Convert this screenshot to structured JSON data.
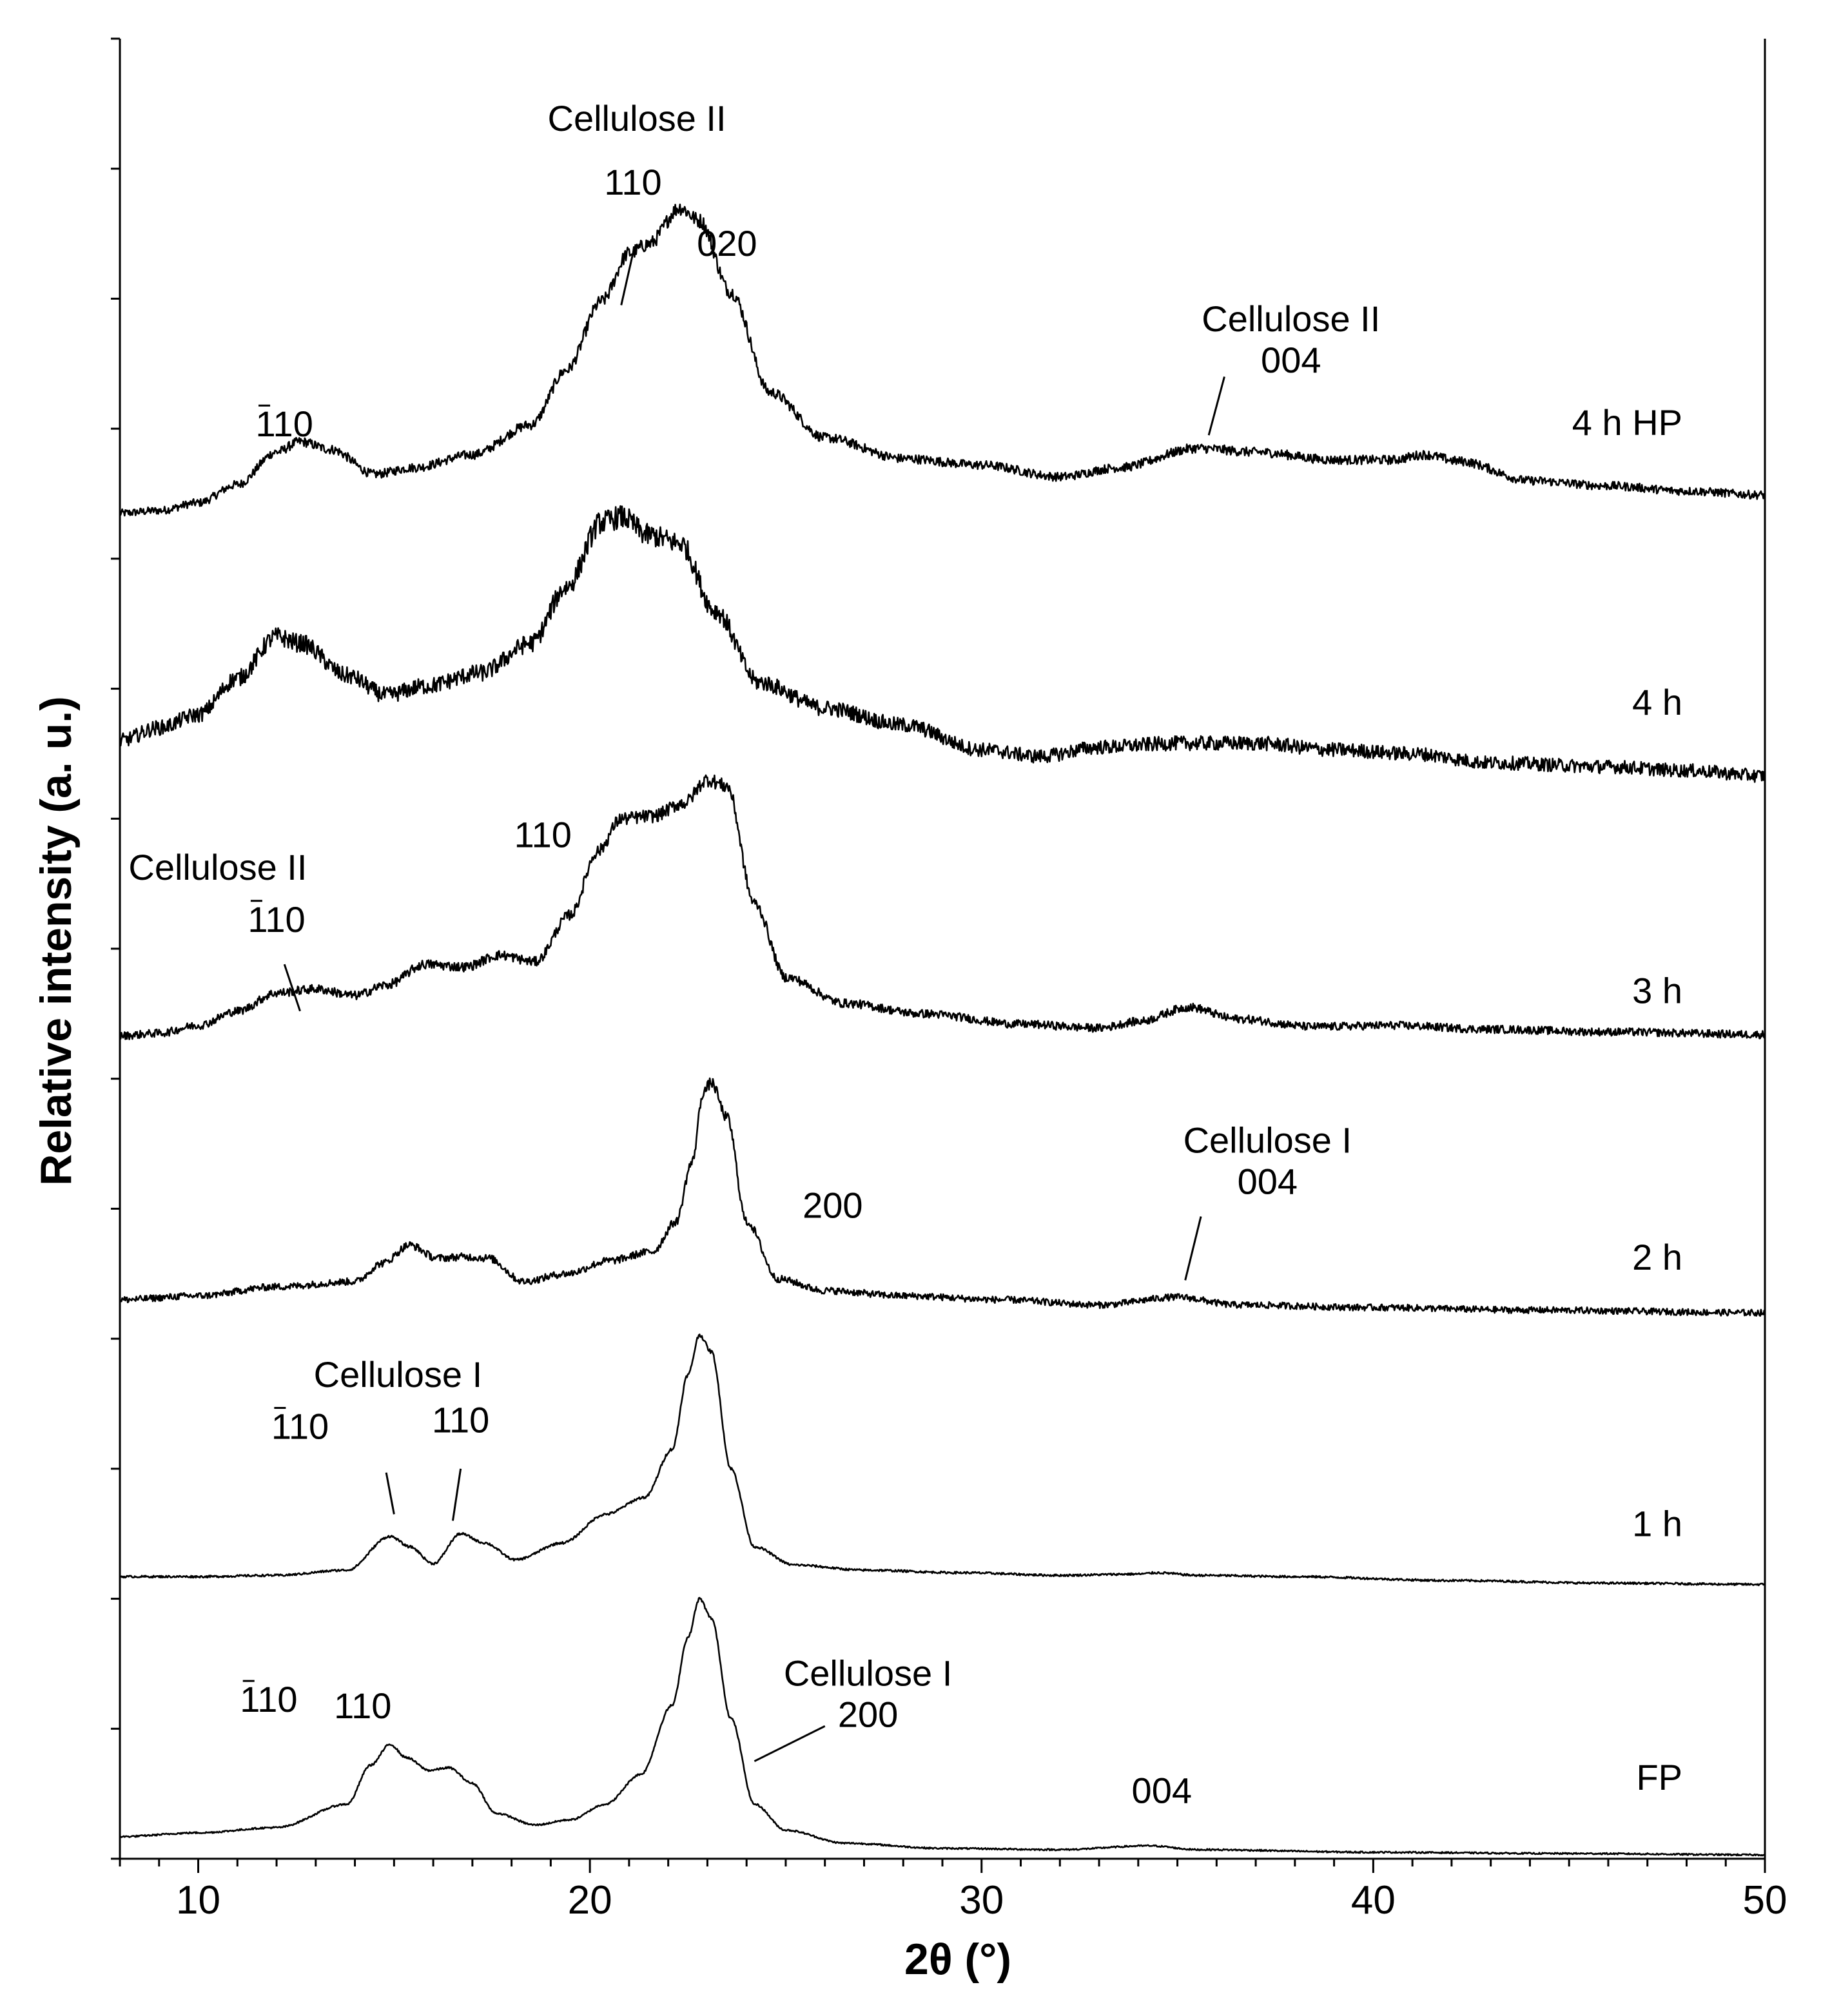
{
  "chart_data": {
    "type": "line",
    "title": "",
    "xlabel": "2θ (°)",
    "ylabel": "Relative intensity (a. u.)",
    "xlim": [
      8,
      50
    ],
    "ylim": [
      0,
      14
    ],
    "xticks": [
      10,
      20,
      30,
      40,
      50
    ],
    "y_tick_count": 14,
    "grid": false,
    "series": [
      {
        "name": "4 h HP",
        "offset": 10.3,
        "noise": 0.03,
        "points": [
          [
            8,
            0.05
          ],
          [
            9,
            0.07
          ],
          [
            10,
            0.13
          ],
          [
            11,
            0.27
          ],
          [
            12,
            0.52
          ],
          [
            12.6,
            0.6
          ],
          [
            13.4,
            0.54
          ],
          [
            14.5,
            0.35
          ],
          [
            15.5,
            0.4
          ],
          [
            17,
            0.5
          ],
          [
            18.5,
            0.73
          ],
          [
            19.4,
            1.15
          ],
          [
            20.3,
            1.68
          ],
          [
            21,
            2.05
          ],
          [
            21.5,
            2.12
          ],
          [
            22.3,
            2.4
          ],
          [
            22.8,
            2.3
          ],
          [
            23.6,
            1.75
          ],
          [
            24.6,
            0.98
          ],
          [
            26,
            0.63
          ],
          [
            28,
            0.47
          ],
          [
            30,
            0.42
          ],
          [
            32,
            0.33
          ],
          [
            33.5,
            0.4
          ],
          [
            35.5,
            0.55
          ],
          [
            37,
            0.52
          ],
          [
            39,
            0.46
          ],
          [
            40.5,
            0.46
          ],
          [
            41.3,
            0.5
          ],
          [
            42.2,
            0.45
          ],
          [
            44,
            0.3
          ],
          [
            46,
            0.26
          ],
          [
            48,
            0.22
          ],
          [
            50,
            0.19
          ]
        ]
      },
      {
        "name": "4 h",
        "offset": 8.3,
        "noise": 0.05,
        "points": [
          [
            8,
            0.3
          ],
          [
            9,
            0.4
          ],
          [
            10,
            0.5
          ],
          [
            11,
            0.78
          ],
          [
            12,
            1.1
          ],
          [
            12.6,
            1.05
          ],
          [
            13.8,
            0.8
          ],
          [
            14.8,
            0.65
          ],
          [
            15.8,
            0.72
          ],
          [
            17.2,
            0.82
          ],
          [
            18.5,
            1.05
          ],
          [
            19.4,
            1.48
          ],
          [
            20.3,
            1.98
          ],
          [
            20.8,
            2.02
          ],
          [
            21.5,
            1.88
          ],
          [
            22.3,
            1.82
          ],
          [
            23.2,
            1.3
          ],
          [
            24.3,
            0.75
          ],
          [
            26,
            0.55
          ],
          [
            28,
            0.42
          ],
          [
            30,
            0.23
          ],
          [
            31.5,
            0.18
          ],
          [
            33,
            0.25
          ],
          [
            35,
            0.28
          ],
          [
            37,
            0.28
          ],
          [
            39,
            0.23
          ],
          [
            41,
            0.2
          ],
          [
            43,
            0.13
          ],
          [
            46,
            0.1
          ],
          [
            48,
            0.07
          ],
          [
            50,
            0.03
          ]
        ]
      },
      {
        "name": "3 h",
        "offset": 6.3,
        "noise": 0.03,
        "points": [
          [
            8,
            0.03
          ],
          [
            9,
            0.05
          ],
          [
            10,
            0.11
          ],
          [
            11,
            0.22
          ],
          [
            12,
            0.36
          ],
          [
            13,
            0.39
          ],
          [
            14,
            0.34
          ],
          [
            14.8,
            0.42
          ],
          [
            15.8,
            0.58
          ],
          [
            16.8,
            0.56
          ],
          [
            17.7,
            0.65
          ],
          [
            18.6,
            0.6
          ],
          [
            19.5,
            0.96
          ],
          [
            20.2,
            1.45
          ],
          [
            20.8,
            1.7
          ],
          [
            21.6,
            1.72
          ],
          [
            22.4,
            1.82
          ],
          [
            23,
            2.0
          ],
          [
            23.5,
            1.95
          ],
          [
            24.2,
            1.05
          ],
          [
            25,
            0.48
          ],
          [
            26.5,
            0.28
          ],
          [
            28.5,
            0.2
          ],
          [
            31,
            0.12
          ],
          [
            33,
            0.09
          ],
          [
            34,
            0.14
          ],
          [
            35.3,
            0.25
          ],
          [
            36.5,
            0.16
          ],
          [
            38.5,
            0.1
          ],
          [
            40.5,
            0.11
          ],
          [
            43,
            0.08
          ],
          [
            46,
            0.06
          ],
          [
            50,
            0.04
          ]
        ]
      },
      {
        "name": "2 h",
        "offset": 4.2,
        "noise": 0.025,
        "points": [
          [
            8,
            0.1
          ],
          [
            10,
            0.13
          ],
          [
            12,
            0.2
          ],
          [
            14,
            0.24
          ],
          [
            14.7,
            0.38
          ],
          [
            15.4,
            0.52
          ],
          [
            16.1,
            0.42
          ],
          [
            16.8,
            0.43
          ],
          [
            17.4,
            0.42
          ],
          [
            18.3,
            0.24
          ],
          [
            19.4,
            0.3
          ],
          [
            20.5,
            0.4
          ],
          [
            21.6,
            0.47
          ],
          [
            22.2,
            0.7
          ],
          [
            22.6,
            1.15
          ],
          [
            22.9,
            1.7
          ],
          [
            23.1,
            1.77
          ],
          [
            23.5,
            1.5
          ],
          [
            24,
            0.7
          ],
          [
            24.8,
            0.26
          ],
          [
            26,
            0.17
          ],
          [
            28,
            0.13
          ],
          [
            30.5,
            0.1
          ],
          [
            33,
            0.06
          ],
          [
            35,
            0.12
          ],
          [
            36.5,
            0.06
          ],
          [
            40,
            0.04
          ],
          [
            44,
            0.02
          ],
          [
            50,
            0.0
          ]
        ]
      },
      {
        "name": "1 h",
        "offset": 2.1,
        "noise": 0.008,
        "points": [
          [
            8,
            0.07
          ],
          [
            10,
            0.07
          ],
          [
            12,
            0.08
          ],
          [
            13.8,
            0.12
          ],
          [
            14.9,
            0.38
          ],
          [
            15.4,
            0.3
          ],
          [
            16,
            0.17
          ],
          [
            16.7,
            0.4
          ],
          [
            17.3,
            0.33
          ],
          [
            18.1,
            0.2
          ],
          [
            19.3,
            0.33
          ],
          [
            20.4,
            0.55
          ],
          [
            21.4,
            0.68
          ],
          [
            22.1,
            1.05
          ],
          [
            22.5,
            1.62
          ],
          [
            22.8,
            1.93
          ],
          [
            23.1,
            1.8
          ],
          [
            23.6,
            0.9
          ],
          [
            24.2,
            0.3
          ],
          [
            25.2,
            0.16
          ],
          [
            27,
            0.12
          ],
          [
            29.5,
            0.1
          ],
          [
            32,
            0.08
          ],
          [
            34,
            0.09
          ],
          [
            34.5,
            0.1
          ],
          [
            35.5,
            0.08
          ],
          [
            38,
            0.07
          ],
          [
            42,
            0.04
          ],
          [
            46,
            0.02
          ],
          [
            50,
            0.01
          ]
        ]
      },
      {
        "name": "FP",
        "offset": 0.0,
        "noise": 0.006,
        "points": [
          [
            8,
            0.17
          ],
          [
            10,
            0.2
          ],
          [
            12,
            0.24
          ],
          [
            13.8,
            0.42
          ],
          [
            14.4,
            0.72
          ],
          [
            14.9,
            0.88
          ],
          [
            15.3,
            0.78
          ],
          [
            15.9,
            0.68
          ],
          [
            16.4,
            0.7
          ],
          [
            17,
            0.58
          ],
          [
            17.6,
            0.35
          ],
          [
            18.6,
            0.26
          ],
          [
            19.5,
            0.3
          ],
          [
            20.4,
            0.42
          ],
          [
            21.3,
            0.65
          ],
          [
            22.1,
            1.18
          ],
          [
            22.5,
            1.7
          ],
          [
            22.8,
            2.0
          ],
          [
            23.1,
            1.85
          ],
          [
            23.6,
            1.08
          ],
          [
            24.2,
            0.42
          ],
          [
            25,
            0.22
          ],
          [
            26.5,
            0.12
          ],
          [
            29,
            0.08
          ],
          [
            32,
            0.07
          ],
          [
            34.3,
            0.1
          ],
          [
            35.5,
            0.07
          ],
          [
            40,
            0.05
          ],
          [
            45,
            0.04
          ],
          [
            50,
            0.03
          ]
        ]
      }
    ],
    "annotations": [
      {
        "lines": [
          "Cellulose II"
        ],
        "x": 21.2,
        "y": 13.29
      },
      {
        "lines": [
          "110"
        ],
        "x": 21.1,
        "y": 12.8
      },
      {
        "lines": [
          "020"
        ],
        "x": 23.5,
        "y": 12.33
      },
      {
        "lines": [
          "110"
        ],
        "bar": "1",
        "x": 12.2,
        "y": 10.94
      },
      {
        "lines": [
          "Cellulose II",
          "004"
        ],
        "x": 37.9,
        "y": 11.75
      },
      {
        "lines": [
          "Cellulose II"
        ],
        "x": 10.5,
        "y": 7.53
      },
      {
        "lines": [
          "110"
        ],
        "bar": "1",
        "x": 12.0,
        "y": 7.13
      },
      {
        "lines": [
          "110"
        ],
        "x": 18.8,
        "y": 7.78
      },
      {
        "lines": [
          "Cellulose I",
          "004"
        ],
        "x": 37.3,
        "y": 5.43
      },
      {
        "lines": [
          "200"
        ],
        "x": 26.2,
        "y": 4.93
      },
      {
        "lines": [
          "Cellulose I"
        ],
        "x": 15.1,
        "y": 3.63
      },
      {
        "lines": [
          "110"
        ],
        "bar": "1",
        "x": 12.6,
        "y": 3.23
      },
      {
        "lines": [
          "110"
        ],
        "x": 16.7,
        "y": 3.28
      },
      {
        "lines": [
          "Cellulose I",
          "200"
        ],
        "x": 27.1,
        "y": 1.33
      },
      {
        "lines": [
          "110"
        ],
        "bar": "1",
        "x": 11.8,
        "y": 1.13
      },
      {
        "lines": [
          "110"
        ],
        "x": 14.2,
        "y": 1.08
      },
      {
        "lines": [
          "004"
        ],
        "x": 34.6,
        "y": 0.43
      }
    ],
    "leaders": [
      [
        [
          21.1,
          12.35
        ],
        [
          20.8,
          11.95
        ]
      ],
      [
        [
          36.2,
          11.4
        ],
        [
          35.8,
          10.95
        ]
      ],
      [
        [
          12.2,
          6.88
        ],
        [
          12.6,
          6.52
        ]
      ],
      [
        [
          35.6,
          4.94
        ],
        [
          35.2,
          4.45
        ]
      ],
      [
        [
          14.8,
          2.97
        ],
        [
          15.0,
          2.65
        ]
      ],
      [
        [
          16.7,
          3.0
        ],
        [
          16.5,
          2.6
        ]
      ],
      [
        [
          26.0,
          1.02
        ],
        [
          24.2,
          0.75
        ]
      ]
    ],
    "series_labels": [
      {
        "text": "4 h HP",
        "y": 10.95
      },
      {
        "text": "4 h",
        "y": 8.8
      },
      {
        "text": "3 h",
        "y": 6.58
      },
      {
        "text": "2 h",
        "y": 4.53
      },
      {
        "text": "1 h",
        "y": 2.48
      },
      {
        "text": "FP",
        "y": 0.53
      }
    ]
  }
}
